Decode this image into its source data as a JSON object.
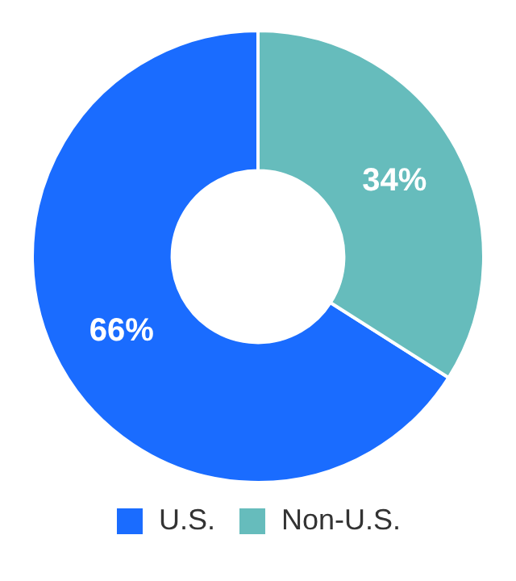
{
  "chart_data": {
    "type": "donut",
    "categories": [
      "U.S.",
      "Non-U.S."
    ],
    "values": [
      66,
      34
    ],
    "colors": [
      "#1a6cff",
      "#66bcbc"
    ],
    "value_labels": [
      "66%",
      "34%"
    ],
    "legend": "bottom"
  }
}
